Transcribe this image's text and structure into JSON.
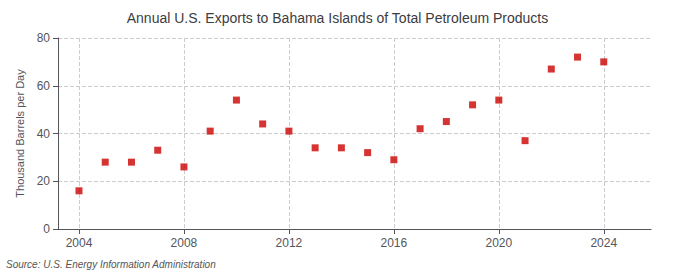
{
  "chart_data": {
    "type": "scatter",
    "title": "Annual U.S. Exports to Bahama Islands of Total Petroleum Products",
    "ylabel": "Thousand Barrels per Day",
    "source": "Source: U.S. Energy Information Administration",
    "x": [
      2004,
      2005,
      2006,
      2007,
      2008,
      2009,
      2010,
      2011,
      2012,
      2013,
      2014,
      2015,
      2016,
      2017,
      2018,
      2019,
      2020,
      2021,
      2022,
      2023,
      2024
    ],
    "values": [
      16,
      28,
      28,
      33,
      26,
      41,
      54,
      44,
      41,
      34,
      34,
      32,
      29,
      42,
      45,
      52,
      54,
      37,
      67,
      72,
      70
    ],
    "color": "#cc0000",
    "marker": "square",
    "xlim": [
      2003.2,
      2025.8
    ],
    "xticks": [
      2004,
      2008,
      2012,
      2016,
      2020,
      2024
    ],
    "ylim": [
      0,
      80
    ],
    "yticks": [
      0,
      20,
      40,
      60,
      80
    ],
    "grid": true
  }
}
